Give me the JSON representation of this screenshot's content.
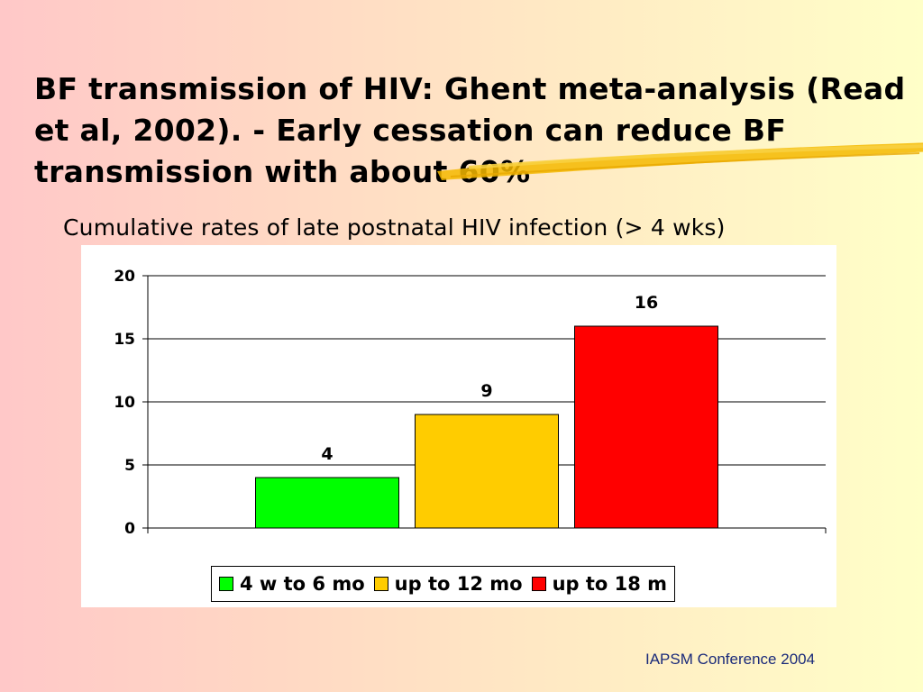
{
  "slide": {
    "title": "BF transmission of HIV: Ghent meta-analysis (Read et al, 2002). - Early cessation can reduce BF transmission with about 60%",
    "subtitle": "Cumulative rates of late postnatal HIV infection (> 4 wks)",
    "footer": "IAPSM  Conference 2004",
    "accent_color": "#f5b800"
  },
  "chart_data": {
    "type": "bar",
    "title": "",
    "xlabel": "",
    "ylabel": "",
    "ylim": [
      0,
      20
    ],
    "yticks": [
      0,
      5,
      10,
      15,
      20
    ],
    "grid": true,
    "legend_position": "bottom",
    "series": [
      {
        "name": "4 w to 6 mo",
        "value": 4,
        "color": "#00ff00"
      },
      {
        "name": "up to 12 mo",
        "value": 9,
        "color": "#ffcc00"
      },
      {
        "name": "up to 18 m",
        "value": 16,
        "color": "#ff0000"
      }
    ]
  }
}
